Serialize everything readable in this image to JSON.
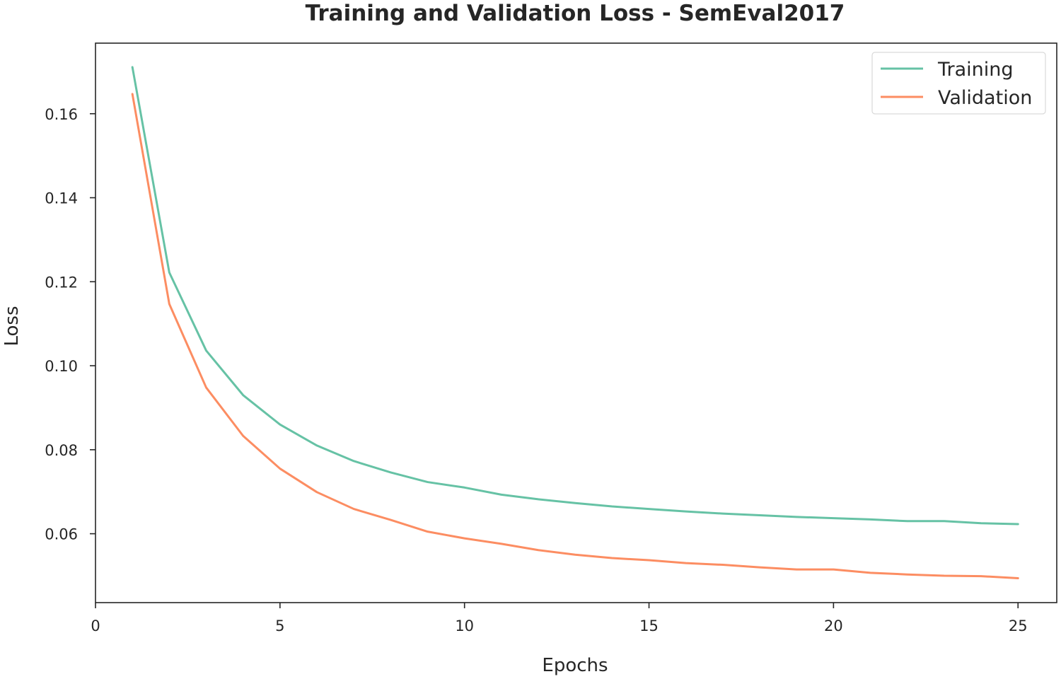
{
  "chart_data": {
    "type": "line",
    "title": "Training and Validation Loss - SemEval2017",
    "xlabel": "Epochs",
    "ylabel": "Loss",
    "xlim": [
      0,
      26.05
    ],
    "ylim": [
      0.0436,
      0.1768
    ],
    "xticks": [
      0,
      5,
      10,
      15,
      20,
      25
    ],
    "yticks": [
      0.06,
      0.08,
      0.1,
      0.12,
      0.14,
      0.16
    ],
    "ytick_labels": [
      "0.06",
      "0.08",
      "0.10",
      "0.12",
      "0.14",
      "0.16"
    ],
    "grid": false,
    "legend_position": "top-right",
    "x": [
      1,
      2,
      3,
      4,
      5,
      6,
      7,
      8,
      9,
      10,
      11,
      12,
      13,
      14,
      15,
      16,
      17,
      18,
      19,
      20,
      21,
      22,
      23,
      24,
      25
    ],
    "series": [
      {
        "name": "Training",
        "color": "#66c2a5",
        "values": [
          0.1711,
          0.1222,
          0.1036,
          0.093,
          0.086,
          0.081,
          0.0773,
          0.0746,
          0.0723,
          0.071,
          0.0693,
          0.0682,
          0.0673,
          0.0665,
          0.0659,
          0.0653,
          0.0648,
          0.0644,
          0.064,
          0.0637,
          0.0634,
          0.063,
          0.063,
          0.0625,
          0.0623
        ]
      },
      {
        "name": "Validation",
        "color": "#fc8d62",
        "values": [
          0.1647,
          0.1147,
          0.0948,
          0.0833,
          0.0755,
          0.0699,
          0.0659,
          0.0633,
          0.0605,
          0.0589,
          0.0576,
          0.0561,
          0.055,
          0.0542,
          0.0537,
          0.053,
          0.0526,
          0.052,
          0.0515,
          0.0515,
          0.0507,
          0.0503,
          0.05,
          0.0499,
          0.0494
        ]
      }
    ]
  }
}
